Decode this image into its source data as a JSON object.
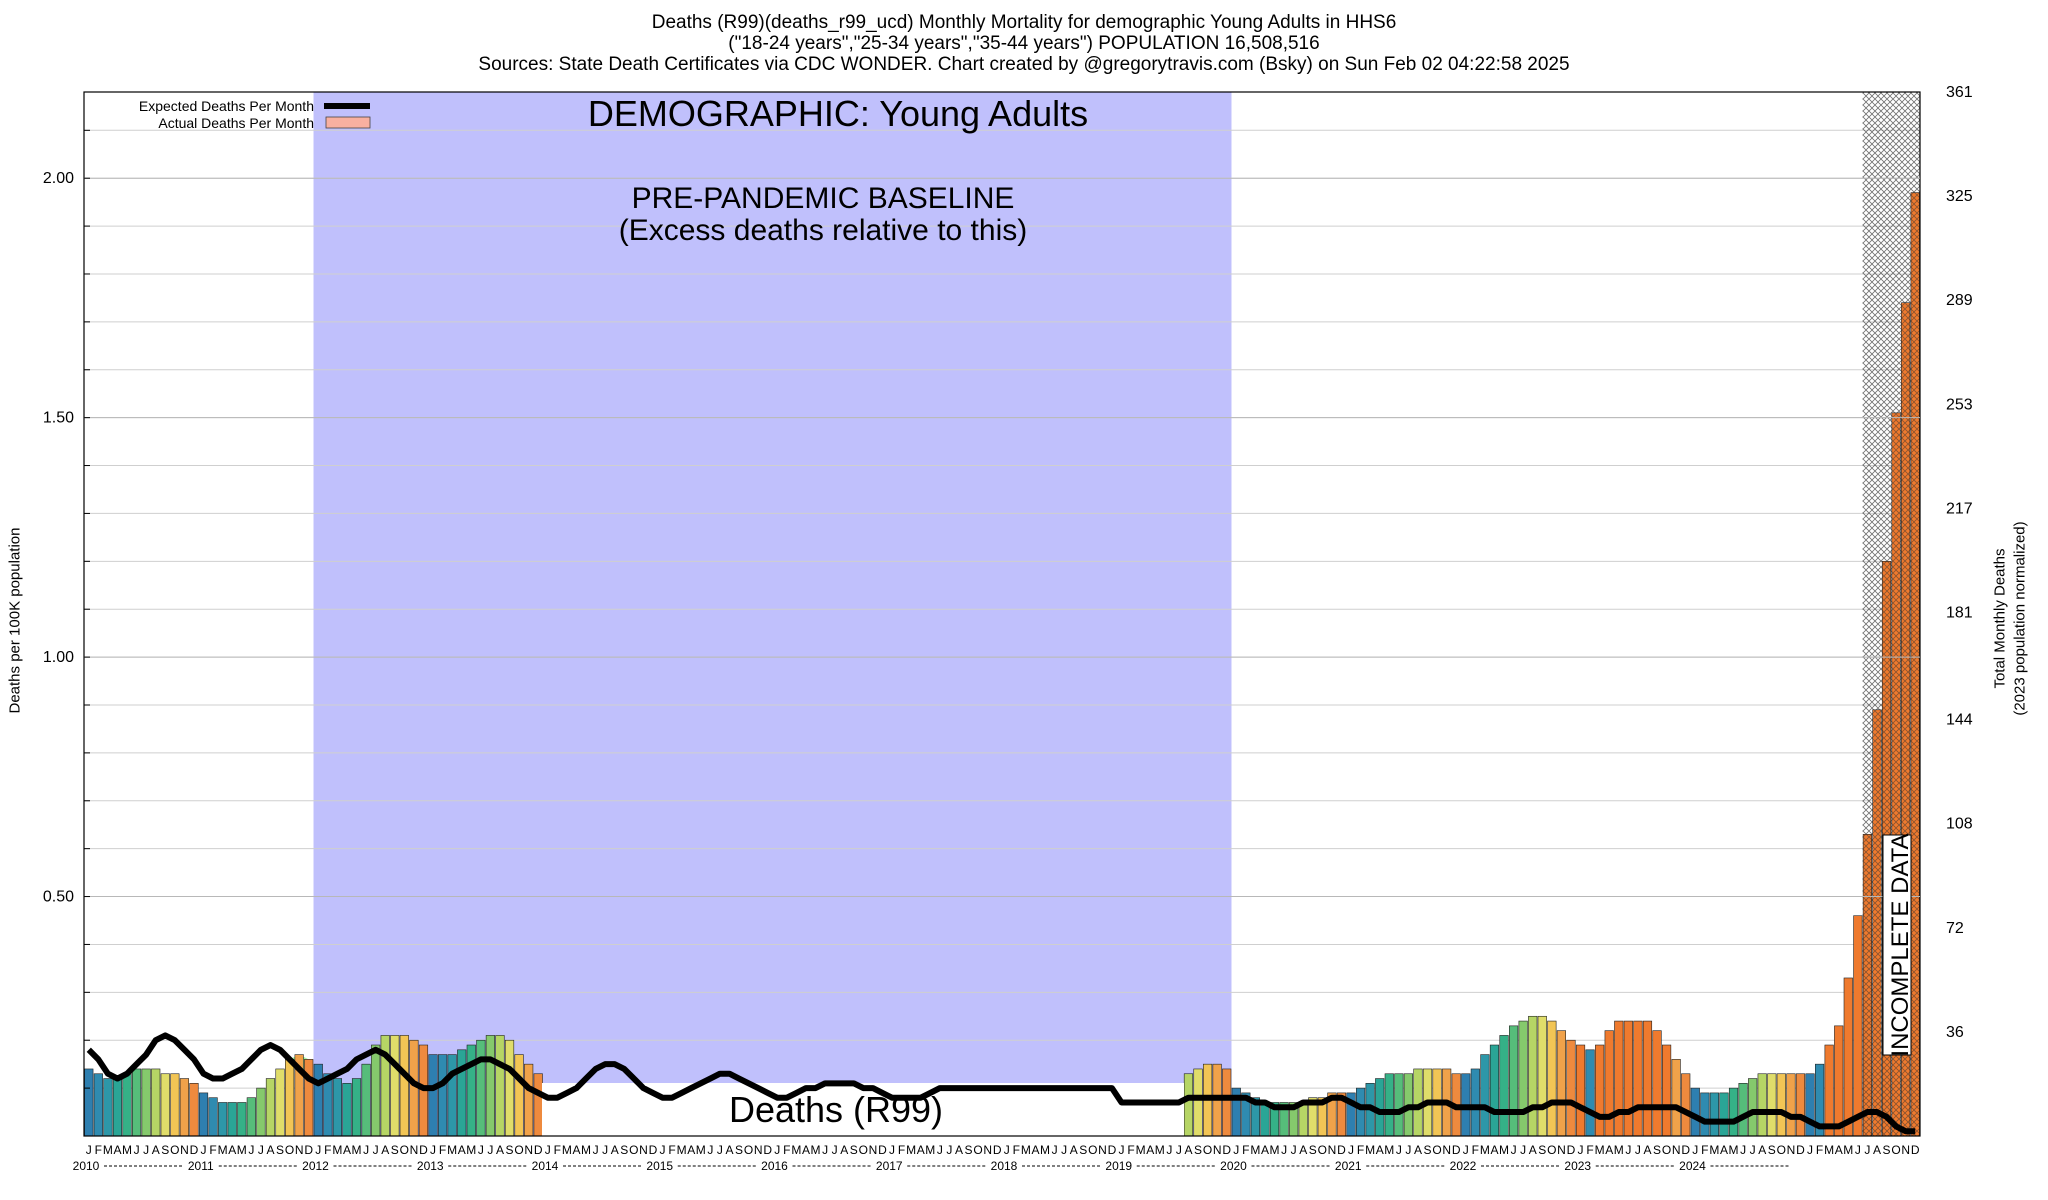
{
  "header": {
    "line1": "Deaths (R99)(deaths_r99_ucd) Monthly Mortality for demographic Young Adults in HHS6",
    "line2": "(\"18-24 years\",\"25-34 years\",\"35-44 years\") POPULATION 16,508,516",
    "line3": "Sources: State Death Certificates via CDC WONDER.              Chart created by @gregorytravis.com (Bsky) on Sun Feb 02 04:22:58 2025"
  },
  "chart_data": {
    "type": "bar",
    "ylabel": "Deaths per 100K population",
    "y2label_line1": "Total Monthly Deaths",
    "y2label_line2": "(2023 population normalized)",
    "ylim": [
      0,
      2.18
    ],
    "y_ticks": [
      "0.50",
      "1.00",
      "1.50",
      "2.00"
    ],
    "y_tick_values": [
      0.5,
      1.0,
      1.5,
      2.0
    ],
    "y2_ticks": [
      "36",
      "72",
      "108",
      "144",
      "181",
      "217",
      "253",
      "289",
      "325",
      "361"
    ],
    "y2_tick_values": [
      36,
      72,
      108,
      144,
      181,
      217,
      253,
      289,
      325,
      361
    ],
    "y2lim": [
      0,
      361
    ],
    "month_letters": [
      "J",
      "F",
      "M",
      "A",
      "M",
      "J",
      "J",
      "A",
      "S",
      "O",
      "N",
      "D"
    ],
    "years": [
      "2010",
      "2011",
      "2012",
      "2013",
      "2014",
      "2015",
      "2016",
      "2017",
      "2018",
      "2019",
      "2020",
      "2021",
      "2022",
      "2023",
      "2024"
    ],
    "legend": {
      "expected_label": "Expected Deaths Per Month",
      "actual_label": "Actual Deaths Per Month"
    },
    "annotations": {
      "demographic": "DEMOGRAPHIC: Young Adults",
      "baseline_line1": "PRE-PANDEMIC BASELINE",
      "baseline_line2": "(Excess deaths relative to this)",
      "cause_box": "Deaths (R99)",
      "incomplete": "INCOMPLETE DATA"
    },
    "baseline_period": [
      "2012-01",
      "2019-12"
    ],
    "incomplete_period": [
      "2024-07",
      "2024-12"
    ],
    "colors": {
      "baseline_shade": "#c0c0fc",
      "excess_fill": "#a0f5a0",
      "expected_line": "#000000",
      "actual_swatch": "#f8b0a0"
    },
    "actual": [
      0.14,
      0.13,
      0.12,
      0.12,
      0.13,
      0.14,
      0.14,
      0.14,
      0.13,
      0.13,
      0.12,
      0.11,
      0.09,
      0.08,
      0.07,
      0.07,
      0.07,
      0.08,
      0.1,
      0.12,
      0.14,
      0.16,
      0.17,
      0.16,
      0.15,
      0.13,
      0.12,
      0.11,
      0.12,
      0.15,
      0.19,
      0.21,
      0.21,
      0.21,
      0.2,
      0.19,
      0.17,
      0.17,
      0.17,
      0.18,
      0.19,
      0.2,
      0.21,
      0.21,
      0.2,
      0.17,
      0.15,
      0.13,
      0.1,
      0.1,
      0.1,
      0.1,
      0.1,
      0.1,
      0.1,
      0.1,
      0.1,
      0.1,
      0.1,
      0.1,
      0.1,
      0.1,
      0.1,
      0.1,
      0.1,
      0.1,
      0.1,
      0.1,
      0.1,
      0.1,
      0.1,
      0.1,
      0.1,
      0.1,
      0.1,
      0.1,
      0.1,
      0.1,
      0.1,
      0.1,
      0.1,
      0.1,
      0.1,
      0.1,
      0.1,
      0.1,
      0.1,
      0.1,
      0.1,
      0.1,
      0.1,
      0.1,
      0.1,
      0.1,
      0.1,
      0.1,
      0.1,
      0.1,
      0.1,
      0.1,
      0.1,
      0.1,
      0.1,
      0.1,
      0.1,
      0.1,
      0.1,
      0.1,
      0.1,
      0.1,
      0.1,
      0.1,
      0.1,
      0.1,
      0.11,
      0.13,
      0.14,
      0.15,
      0.15,
      0.14,
      0.1,
      0.09,
      0.08,
      0.07,
      0.07,
      0.07,
      0.07,
      0.07,
      0.08,
      0.08,
      0.09,
      0.09,
      0.09,
      0.1,
      0.11,
      0.12,
      0.13,
      0.13,
      0.13,
      0.14,
      0.14,
      0.14,
      0.14,
      0.13,
      0.13,
      0.14,
      0.17,
      0.19,
      0.21,
      0.23,
      0.24,
      0.25,
      0.25,
      0.24,
      0.22,
      0.2,
      0.19,
      0.18,
      0.19,
      0.22,
      0.24,
      0.24,
      0.24,
      0.24,
      0.22,
      0.19,
      0.16,
      0.13,
      0.1,
      0.09,
      0.09,
      0.09,
      0.1,
      0.11,
      0.12,
      0.13,
      0.13,
      0.13,
      0.13,
      0.13,
      0.13,
      0.15,
      0.19,
      0.23,
      0.33,
      0.46,
      0.63,
      0.89,
      1.2,
      1.51,
      1.74,
      1.97
    ],
    "expected": [
      0.18,
      0.16,
      0.13,
      0.12,
      0.13,
      0.15,
      0.17,
      0.2,
      0.21,
      0.2,
      0.18,
      0.16,
      0.13,
      0.12,
      0.12,
      0.13,
      0.14,
      0.16,
      0.18,
      0.19,
      0.18,
      0.16,
      0.14,
      0.12,
      0.11,
      0.12,
      0.13,
      0.14,
      0.16,
      0.17,
      0.18,
      0.17,
      0.15,
      0.13,
      0.11,
      0.1,
      0.1,
      0.11,
      0.13,
      0.14,
      0.15,
      0.16,
      0.16,
      0.15,
      0.14,
      0.12,
      0.1,
      0.09,
      0.08,
      0.08,
      0.09,
      0.1,
      0.12,
      0.14,
      0.15,
      0.15,
      0.14,
      0.12,
      0.1,
      0.09,
      0.08,
      0.08,
      0.09,
      0.1,
      0.11,
      0.12,
      0.13,
      0.13,
      0.12,
      0.11,
      0.1,
      0.09,
      0.08,
      0.08,
      0.09,
      0.1,
      0.1,
      0.11,
      0.11,
      0.11,
      0.11,
      0.1,
      0.1,
      0.09,
      0.08,
      0.08,
      0.08,
      0.08,
      0.09,
      0.1,
      0.1,
      0.1,
      0.1,
      0.1,
      0.1,
      0.1,
      0.1,
      0.1,
      0.1,
      0.1,
      0.1,
      0.1,
      0.1,
      0.1,
      0.1,
      0.1,
      0.1,
      0.1,
      0.07,
      0.07,
      0.07,
      0.07,
      0.07,
      0.07,
      0.07,
      0.08,
      0.08,
      0.08,
      0.08,
      0.08,
      0.08,
      0.08,
      0.07,
      0.07,
      0.06,
      0.06,
      0.06,
      0.07,
      0.07,
      0.07,
      0.08,
      0.08,
      0.07,
      0.06,
      0.06,
      0.05,
      0.05,
      0.05,
      0.06,
      0.06,
      0.07,
      0.07,
      0.07,
      0.06,
      0.06,
      0.06,
      0.06,
      0.05,
      0.05,
      0.05,
      0.05,
      0.06,
      0.06,
      0.07,
      0.07,
      0.07,
      0.06,
      0.05,
      0.04,
      0.04,
      0.05,
      0.05,
      0.06,
      0.06,
      0.06,
      0.06,
      0.06,
      0.05,
      0.04,
      0.03,
      0.03,
      0.03,
      0.03,
      0.04,
      0.05,
      0.05,
      0.05,
      0.05,
      0.04,
      0.04,
      0.03,
      0.02,
      0.02,
      0.02,
      0.03,
      0.04,
      0.05,
      0.05,
      0.04,
      0.02,
      0.01,
      0.01
    ]
  }
}
